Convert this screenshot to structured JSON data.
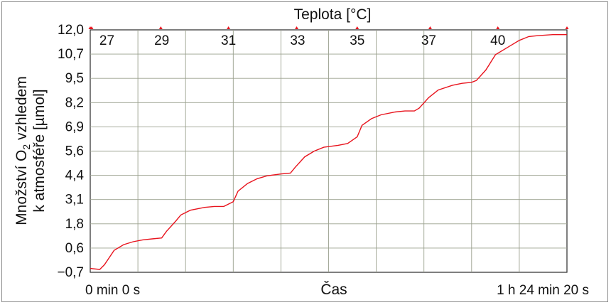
{
  "chart_data": {
    "type": "line",
    "top_axis_title": "Teplota [°C]",
    "xlabel": "Čas",
    "ylabel_line1": "Množství O",
    "ylabel_sub": "2",
    "ylabel_line1_end": " vzhledem",
    "ylabel_line2": "k atmosféře [µmol]",
    "x_start_label": "0 min 0 s",
    "x_end_label": "1 h 24 min 20 s",
    "ylim": [
      -0.7,
      12.0
    ],
    "yticks": [
      "12,0",
      "10,7",
      "9,5",
      "8,2",
      "6,9",
      "5,6",
      "4,4",
      "3,1",
      "1,8",
      "0,6",
      "−0,7"
    ],
    "temperature_labels": [
      "27",
      "29",
      "31",
      "33",
      "35",
      "37",
      "40"
    ],
    "grid": true,
    "line_color": "#e8141e",
    "series": [
      {
        "x_fraction": [
          0.0,
          0.02,
          0.03,
          0.05,
          0.07,
          0.09,
          0.11,
          0.13,
          0.15,
          0.16,
          0.18,
          0.19,
          0.21,
          0.24,
          0.26,
          0.28,
          0.3,
          0.31,
          0.33,
          0.35,
          0.37,
          0.4,
          0.42,
          0.43,
          0.45,
          0.47,
          0.49,
          0.52,
          0.54,
          0.56,
          0.57,
          0.59,
          0.61,
          0.64,
          0.66,
          0.68,
          0.69,
          0.71,
          0.73,
          0.76,
          0.78,
          0.8,
          0.81,
          0.83,
          0.85,
          0.88,
          0.9,
          0.92,
          0.94,
          0.97,
          1.0
        ],
        "values": [
          -0.5,
          -0.55,
          -0.3,
          0.45,
          0.75,
          0.9,
          1.0,
          1.05,
          1.1,
          1.45,
          2.0,
          2.3,
          2.55,
          2.7,
          2.75,
          2.75,
          3.0,
          3.55,
          3.95,
          4.2,
          4.35,
          4.45,
          4.5,
          4.8,
          5.35,
          5.65,
          5.85,
          5.95,
          6.05,
          6.4,
          7.0,
          7.35,
          7.55,
          7.7,
          7.75,
          7.75,
          7.9,
          8.45,
          8.85,
          9.1,
          9.2,
          9.25,
          9.35,
          9.9,
          10.7,
          11.15,
          11.45,
          11.65,
          11.7,
          11.75,
          11.75
        ]
      }
    ]
  }
}
